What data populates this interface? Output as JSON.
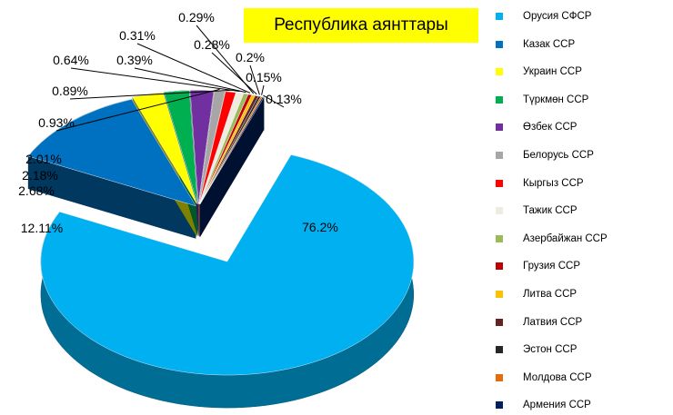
{
  "chart_data": {
    "type": "pie",
    "title": "Республика аянттары",
    "legend_position": "right",
    "slices": [
      {
        "name": "Орусия СФСР",
        "value": 76.2,
        "label": "76.2%",
        "color": "#00b0f0"
      },
      {
        "name": "Казак ССР",
        "value": 12.11,
        "label": "12.11%",
        "color": "#0070c0"
      },
      {
        "name": "Украин ССР",
        "value": 2.68,
        "label": "2.68%",
        "color": "#ffff00"
      },
      {
        "name": "Түркмөн ССР",
        "value": 2.18,
        "label": "2.18%",
        "color": "#00b050"
      },
      {
        "name": "Өзбек ССР",
        "value": 2.01,
        "label": "2.01%",
        "color": "#7030a0"
      },
      {
        "name": "Белорусь ССР",
        "value": 0.93,
        "label": "0.93%",
        "color": "#a6a6a6"
      },
      {
        "name": "Кыргыз ССР",
        "value": 0.89,
        "label": "0.89%",
        "color": "#ff0000"
      },
      {
        "name": "Тажик ССР",
        "value": 0.64,
        "label": "0.64%",
        "color": "#eeece1"
      },
      {
        "name": "Азербайжан ССР",
        "value": 0.39,
        "label": "0.39%",
        "color": "#9bbb59"
      },
      {
        "name": "Грузия ССР",
        "value": 0.31,
        "label": "0.31%",
        "color": "#c00000"
      },
      {
        "name": "Литва ССР",
        "value": 0.29,
        "label": "0.29%",
        "color": "#ffc000"
      },
      {
        "name": "Латвия ССР",
        "value": 0.28,
        "label": "0.28%",
        "color": "#632523"
      },
      {
        "name": "Эстон ССР",
        "value": 0.2,
        "label": "0.2%",
        "color": "#262626"
      },
      {
        "name": "Молдова ССР",
        "value": 0.15,
        "label": "0.15%",
        "color": "#e46c0a"
      },
      {
        "name": "Армения ССР",
        "value": 0.13,
        "label": "0.13%",
        "color": "#002060"
      }
    ]
  }
}
